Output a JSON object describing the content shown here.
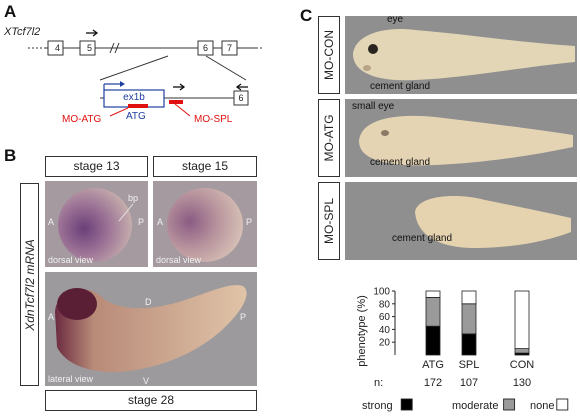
{
  "panel_a": {
    "letter": "A",
    "gene": "XTcf7l2",
    "exons": [
      "4",
      "5",
      "6",
      "7"
    ],
    "zoom_exons": [
      "6"
    ],
    "exon_label": "ex1b",
    "mo_atg": "MO-ATG",
    "atg": "ATG",
    "mo_spl": "MO-SPL"
  },
  "panel_b": {
    "letter": "B",
    "ylabel": "XdnTcf7l2 mRNA",
    "stage13": "stage 13",
    "stage15": "stage 15",
    "stage28": "stage 28",
    "A": "A",
    "P": "P",
    "D": "D",
    "V": "V",
    "bp": "bp",
    "dorsal_view": "dorsal view",
    "lateral_view": "lateral view"
  },
  "panel_c": {
    "letter": "C",
    "rows": [
      {
        "label": "MO-CON",
        "notes": [
          "eye",
          "cement gland"
        ]
      },
      {
        "label": "MO-ATG",
        "notes": [
          "small eye",
          "cement gland"
        ]
      },
      {
        "label": "MO-SPL",
        "notes": [
          "cement gland"
        ]
      }
    ]
  },
  "chart_data": {
    "type": "bar",
    "ylabel": "phenotype (%)",
    "ylim": [
      0,
      100
    ],
    "yticks": [
      "20",
      "40",
      "60",
      "80",
      "100"
    ],
    "categories": [
      "ATG",
      "SPL",
      "CON"
    ],
    "n_label": "n:",
    "n": [
      "172",
      "107",
      "130"
    ],
    "series": [
      {
        "name": "strong",
        "values": [
          45,
          33,
          3
        ]
      },
      {
        "name": "moderate",
        "values": [
          45,
          47,
          7
        ]
      },
      {
        "name": "none",
        "values": [
          10,
          20,
          90
        ]
      }
    ],
    "colors": {
      "strong": "#000000",
      "moderate": "#9a9a9a",
      "none": "#ffffff"
    }
  }
}
